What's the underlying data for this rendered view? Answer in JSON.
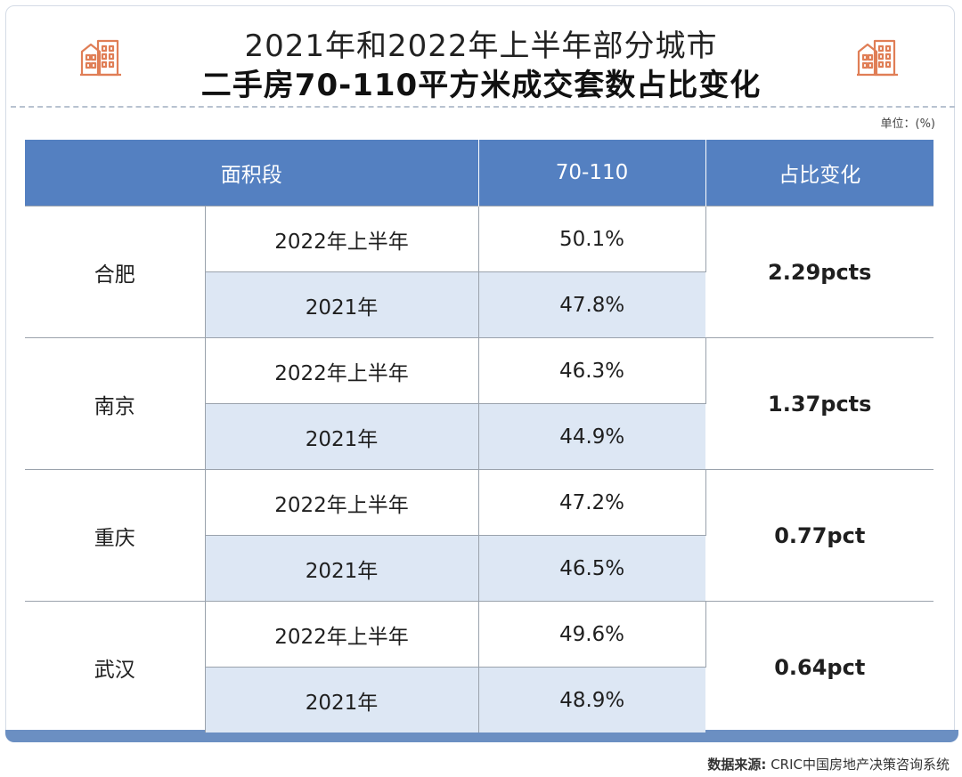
{
  "header": {
    "title_line1": "2021年和2022年上半年部分城市",
    "title_line2": "二手房70-110平方米成交套数占比变化",
    "unit": "单位：(%)"
  },
  "colors": {
    "header_bg": "#5480c1",
    "stripe_bg": "#dde7f4",
    "icon_color": "#e07e56",
    "bottom_bar": "#6b8fc2"
  },
  "table": {
    "columns": [
      "面积段",
      "70-110",
      "占比变化"
    ]
  },
  "chart_data": {
    "type": "table",
    "title": "2021年和2022年上半年部分城市 二手房70-110平方米成交套数占比变化",
    "unit": "%",
    "columns": [
      "面积段",
      "70-110",
      "占比变化"
    ],
    "rows": [
      {
        "city": "合肥",
        "change": "2.29pcts",
        "periods": [
          {
            "period": "2022年上半年",
            "value": "50.1%"
          },
          {
            "period": "2021年",
            "value": "47.8%"
          }
        ]
      },
      {
        "city": "南京",
        "change": "1.37pcts",
        "periods": [
          {
            "period": "2022年上半年",
            "value": "46.3%"
          },
          {
            "period": "2021年",
            "value": "44.9%"
          }
        ]
      },
      {
        "city": "重庆",
        "change": "0.77pct",
        "periods": [
          {
            "period": "2022年上半年",
            "value": "47.2%"
          },
          {
            "period": "2021年",
            "value": "46.5%"
          }
        ]
      },
      {
        "city": "武汉",
        "change": "0.64pct",
        "periods": [
          {
            "period": "2022年上半年",
            "value": "49.6%"
          },
          {
            "period": "2021年",
            "value": "48.9%"
          }
        ]
      }
    ]
  },
  "footer": {
    "source_label": "数据来源:",
    "source_text": " CRIC中国房地产决策咨询系统"
  },
  "icons": [
    "building-icon"
  ]
}
